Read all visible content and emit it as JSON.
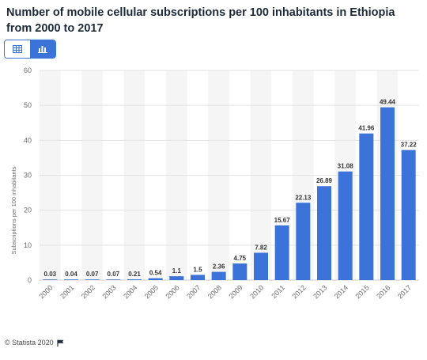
{
  "header": {
    "title": "Number of mobile cellular subscriptions per 100 inhabitants in Ethiopia from 2000 to 2017"
  },
  "view_toggle": {
    "table_icon": "table-icon",
    "chart_icon": "bar-chart-icon",
    "active": "chart"
  },
  "chart_data": {
    "type": "bar",
    "categories": [
      "2000",
      "2001",
      "2002",
      "2003",
      "2004",
      "2005",
      "2006",
      "2007",
      "2008",
      "2009",
      "2010",
      "2011",
      "2012",
      "2013",
      "2014",
      "2015",
      "2016",
      "2017"
    ],
    "values": [
      0.03,
      0.04,
      0.07,
      0.07,
      0.21,
      0.54,
      1.1,
      1.5,
      2.36,
      4.75,
      7.82,
      15.67,
      22.13,
      26.89,
      31.08,
      41.96,
      49.44,
      37.22
    ],
    "labels": [
      "0.03",
      "0.04",
      "0.07",
      "0.07",
      "0.21",
      "0.54",
      "1.1",
      "1.5",
      "2.36",
      "4.75",
      "7.82",
      "15.67",
      "22.13",
      "26.89",
      "31.08",
      "41.96",
      "49.44",
      "37.22"
    ],
    "ylabel": "Subscriptions per 100 inhabitants",
    "xlabel": "",
    "ylim": [
      0,
      60
    ],
    "yticks": [
      0,
      10,
      20,
      30,
      40,
      50,
      60
    ],
    "grid": true,
    "bar_color": "#3b73d9",
    "band_color": "#f5f5f5"
  },
  "footer": {
    "copyright": "© Statista 2020",
    "flag_icon": "flag-icon"
  }
}
